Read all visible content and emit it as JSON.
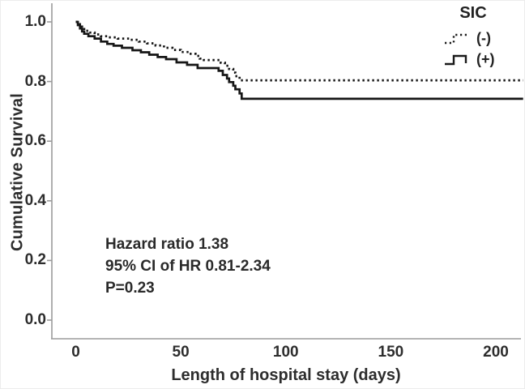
{
  "figure": {
    "background": "#ffffff",
    "axis_color": "#9b9b9b",
    "curve_color": "#161616",
    "text_color": "#2d2d2d"
  },
  "chart_data": {
    "type": "line",
    "subtype": "kaplan-meier-step",
    "title": "",
    "xlabel": "Length of hospital stay (days)",
    "ylabel": "Cumulative Survival",
    "xlim": [
      0,
      213
    ],
    "ylim": [
      0.0,
      1.0
    ],
    "xticks": [
      0,
      50,
      100,
      150,
      200
    ],
    "yticks": [
      0.0,
      0.2,
      0.4,
      0.6,
      0.8,
      1.0
    ],
    "grid": false,
    "legend": {
      "title": "SIC",
      "position": "top-right",
      "entries": [
        {
          "label": "(-)",
          "style": "dotted"
        },
        {
          "label": "(+)",
          "style": "solid"
        }
      ]
    },
    "annotation": [
      "Hazard ratio 1.38",
      "95% CI of HR 0.81-2.34",
      "P=0.23"
    ],
    "series": [
      {
        "name": "SIC (-)",
        "style": "dotted",
        "points": [
          [
            0,
            1.0
          ],
          [
            1,
            0.992
          ],
          [
            2,
            0.984
          ],
          [
            3,
            0.976
          ],
          [
            4,
            0.97
          ],
          [
            6,
            0.964
          ],
          [
            9,
            0.958
          ],
          [
            12,
            0.952
          ],
          [
            15,
            0.948
          ],
          [
            20,
            0.944
          ],
          [
            26,
            0.94
          ],
          [
            30,
            0.934
          ],
          [
            34,
            0.928
          ],
          [
            38,
            0.921
          ],
          [
            42,
            0.913
          ],
          [
            46,
            0.906
          ],
          [
            50,
            0.899
          ],
          [
            54,
            0.893
          ],
          [
            57,
            0.886
          ],
          [
            59,
            0.877
          ],
          [
            61,
            0.872
          ],
          [
            69,
            0.863
          ],
          [
            71,
            0.853
          ],
          [
            73,
            0.842
          ],
          [
            75,
            0.83
          ],
          [
            76,
            0.818
          ],
          [
            78,
            0.804
          ],
          [
            213,
            0.804
          ]
        ]
      },
      {
        "name": "SIC (+)",
        "style": "solid",
        "points": [
          [
            0,
            1.0
          ],
          [
            1,
            0.989
          ],
          [
            2,
            0.978
          ],
          [
            3,
            0.968
          ],
          [
            4,
            0.96
          ],
          [
            6,
            0.952
          ],
          [
            9,
            0.944
          ],
          [
            12,
            0.934
          ],
          [
            15,
            0.926
          ],
          [
            18,
            0.92
          ],
          [
            22,
            0.913
          ],
          [
            27,
            0.905
          ],
          [
            31,
            0.898
          ],
          [
            35,
            0.89
          ],
          [
            39,
            0.882
          ],
          [
            43,
            0.875
          ],
          [
            48,
            0.864
          ],
          [
            53,
            0.856
          ],
          [
            58,
            0.845
          ],
          [
            68,
            0.836
          ],
          [
            70,
            0.822
          ],
          [
            72,
            0.81
          ],
          [
            73,
            0.798
          ],
          [
            75,
            0.786
          ],
          [
            76,
            0.774
          ],
          [
            78,
            0.76
          ],
          [
            79,
            0.742
          ],
          [
            213,
            0.742
          ]
        ]
      }
    ]
  }
}
